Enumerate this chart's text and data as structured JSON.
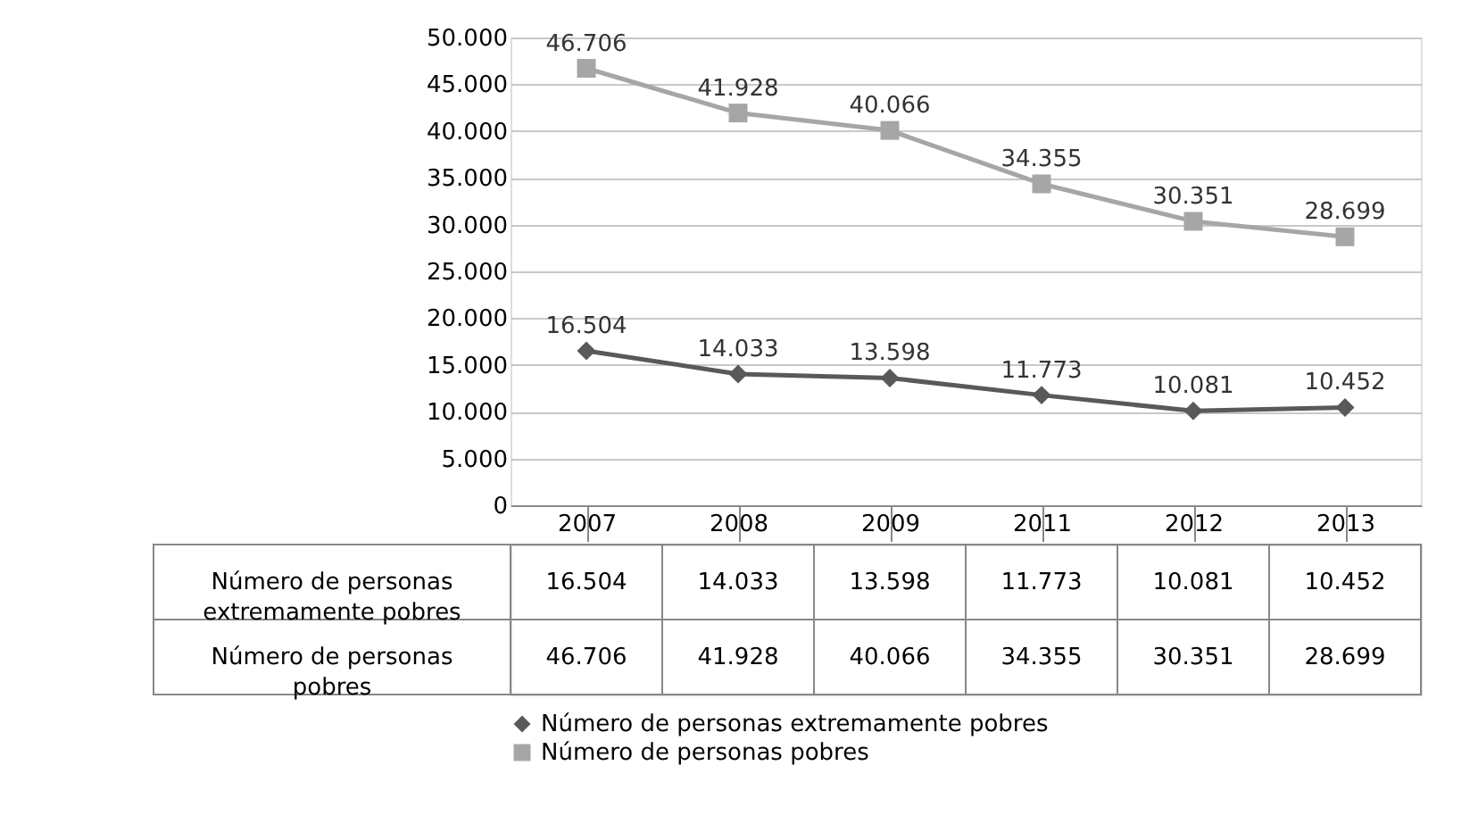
{
  "chart_data": {
    "type": "line",
    "categories": [
      "2007",
      "2008",
      "2009",
      "2011",
      "2012",
      "2013"
    ],
    "series": [
      {
        "name": "Número de personas extremamente pobres",
        "color": "#595959",
        "marker": "diamond",
        "values": [
          16504,
          14033,
          13598,
          11773,
          10081,
          10452
        ],
        "value_labels": [
          "16.504",
          "14.033",
          "13.598",
          "11.773",
          "10.081",
          "10.452"
        ]
      },
      {
        "name": "Número de personas pobres",
        "color": "#a6a6a6",
        "marker": "square",
        "values": [
          46706,
          41928,
          40066,
          34355,
          30351,
          28699
        ],
        "value_labels": [
          "46.706",
          "41.928",
          "40.066",
          "34.355",
          "30.351",
          "28.699"
        ]
      }
    ],
    "ylim": [
      0,
      50000
    ],
    "yticks": [
      {
        "value": 0,
        "label": "0"
      },
      {
        "value": 5000,
        "label": "5.000"
      },
      {
        "value": 10000,
        "label": "10.000"
      },
      {
        "value": 15000,
        "label": "15.000"
      },
      {
        "value": 20000,
        "label": "20.000"
      },
      {
        "value": 25000,
        "label": "25.000"
      },
      {
        "value": 30000,
        "label": "30.000"
      },
      {
        "value": 35000,
        "label": "35.000"
      },
      {
        "value": 40000,
        "label": "40.000"
      },
      {
        "value": 45000,
        "label": "45.000"
      },
      {
        "value": 50000,
        "label": "50.000"
      }
    ],
    "grid": "y",
    "legend": "bottom",
    "line_style": "solid"
  }
}
